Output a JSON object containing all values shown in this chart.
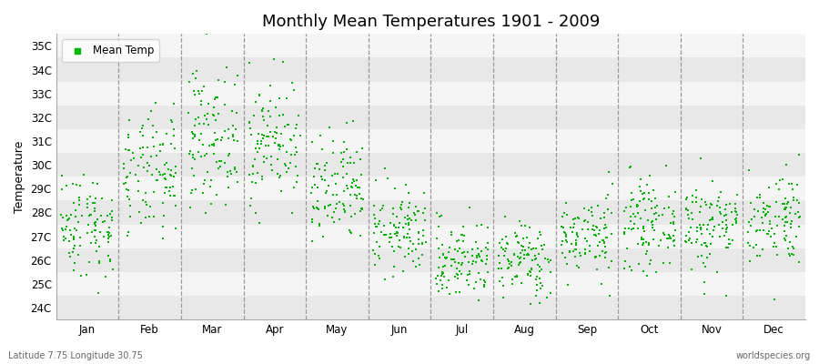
{
  "title": "Monthly Mean Temperatures 1901 - 2009",
  "ylabel": "Temperature",
  "months": [
    "Jan",
    "Feb",
    "Mar",
    "Apr",
    "May",
    "Jun",
    "Jul",
    "Aug",
    "Sep",
    "Oct",
    "Nov",
    "Dec"
  ],
  "monthly_means": [
    27.5,
    29.5,
    31.2,
    31.0,
    28.8,
    27.2,
    26.0,
    26.0,
    27.0,
    27.5,
    27.5,
    27.8
  ],
  "monthly_stds": [
    1.1,
    1.3,
    1.4,
    1.3,
    1.2,
    0.9,
    0.85,
    0.8,
    0.85,
    0.9,
    1.0,
    1.0
  ],
  "n_years": 109,
  "ylim": [
    23.5,
    35.5
  ],
  "yticks": [
    24,
    25,
    26,
    27,
    28,
    29,
    30,
    31,
    32,
    33,
    34,
    35
  ],
  "ytick_labels": [
    "24C",
    "25C",
    "26C",
    "27C",
    "28C",
    "29C",
    "30C",
    "31C",
    "32C",
    "33C",
    "34C",
    "35C"
  ],
  "dot_color": "#00bb00",
  "dot_size": 3,
  "figure_bg": "#ffffff",
  "plot_bg_light": "#f5f5f5",
  "plot_bg_dark": "#e8e8e8",
  "dashed_line_color": "#999999",
  "title_fontsize": 13,
  "axis_fontsize": 9,
  "tick_fontsize": 8.5,
  "legend_label": "Mean Temp",
  "subtitle_left": "Latitude 7.75 Longitude 30.75",
  "subtitle_right": "worldspecies.org",
  "seed": 42
}
